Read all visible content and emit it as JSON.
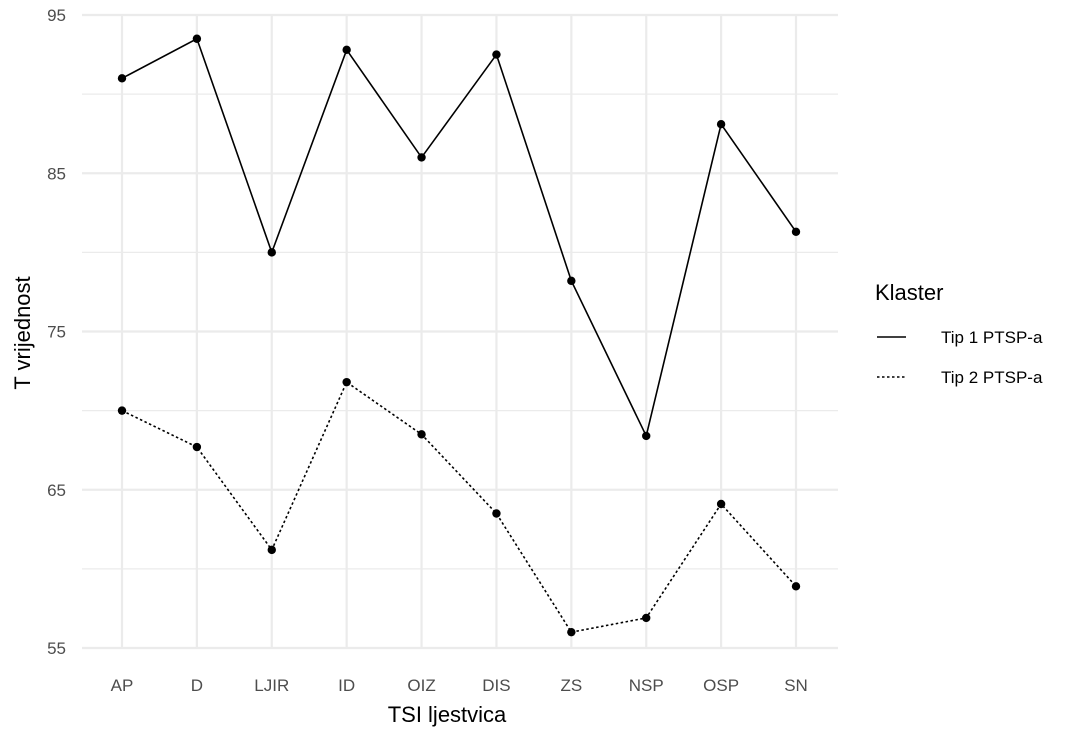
{
  "chart_data": {
    "type": "line",
    "xlabel": "TSI ljestvica",
    "ylabel": "T vrijednost",
    "categories": [
      "AP",
      "D",
      "LJIR",
      "ID",
      "OIZ",
      "DIS",
      "ZS",
      "NSP",
      "OSP",
      "SN"
    ],
    "ylim": [
      55,
      95
    ],
    "yticks": [
      55,
      65,
      75,
      85,
      95
    ],
    "grid": true,
    "legend": {
      "title": "Klaster",
      "position": "right"
    },
    "series": [
      {
        "name": "Tip 1 PTSP-a",
        "linestyle": "solid",
        "values": [
          91.0,
          93.5,
          80.0,
          92.8,
          86.0,
          92.5,
          78.2,
          68.4,
          88.1,
          81.3
        ]
      },
      {
        "name": "Tip 2 PTSP-a",
        "linestyle": "dotted",
        "values": [
          70.0,
          67.7,
          61.2,
          71.8,
          68.5,
          63.5,
          56.0,
          56.9,
          64.1,
          58.9
        ]
      }
    ],
    "colors": {
      "line": "#000000",
      "grid": "#ebebeb",
      "tick_text": "#4d4d4d"
    }
  }
}
